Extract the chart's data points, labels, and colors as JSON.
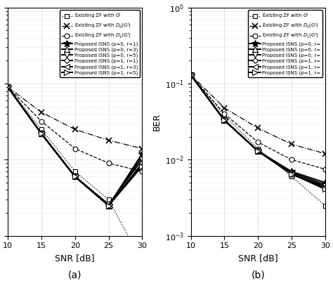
{
  "snr_a": [
    10,
    15,
    20,
    25,
    30
  ],
  "snr_b": [
    10,
    15,
    20,
    25,
    30
  ],
  "subplot_a": {
    "G": [
      0.09,
      0.025,
      0.007,
      0.003,
      0.00045
    ],
    "D0G": [
      0.09,
      0.042,
      0.025,
      0.018,
      0.014
    ],
    "D1G": [
      0.09,
      0.032,
      0.014,
      0.009,
      0.007
    ],
    "p0r1": [
      0.09,
      0.022,
      0.006,
      0.0025,
      0.012
    ],
    "p0r3": [
      0.09,
      0.022,
      0.006,
      0.0025,
      0.011
    ],
    "p0r5": [
      0.09,
      0.022,
      0.006,
      0.0026,
      0.01
    ],
    "p1r1": [
      0.09,
      0.022,
      0.006,
      0.0025,
      0.009
    ],
    "p1r3": [
      0.09,
      0.022,
      0.006,
      0.0025,
      0.0085
    ],
    "p1r5": [
      0.09,
      0.022,
      0.006,
      0.0025,
      0.0082
    ]
  },
  "subplot_b": {
    "G": [
      0.13,
      0.038,
      0.014,
      0.006,
      0.0025
    ],
    "D0G": [
      0.13,
      0.048,
      0.026,
      0.016,
      0.012
    ],
    "D1G": [
      0.13,
      0.04,
      0.017,
      0.01,
      0.0075
    ],
    "p0r1": [
      0.13,
      0.033,
      0.013,
      0.007,
      0.005
    ],
    "p0r3": [
      0.13,
      0.033,
      0.013,
      0.0068,
      0.0047
    ],
    "p0r5": [
      0.13,
      0.033,
      0.013,
      0.0065,
      0.0045
    ],
    "p1r1": [
      0.13,
      0.033,
      0.013,
      0.0065,
      0.0043
    ],
    "p1r3": [
      0.13,
      0.033,
      0.013,
      0.0065,
      0.0042
    ],
    "p1r5": [
      0.13,
      0.033,
      0.013,
      0.0065,
      0.0041
    ]
  },
  "ylim": [
    0.001,
    1.0
  ],
  "xlim": [
    10,
    30
  ],
  "xticks": [
    10,
    15,
    20,
    25,
    30
  ],
  "legend_labels_a": [
    "Existing ZF with $G^i$",
    "Existing ZF with $D_0(G^i)$",
    "Existing ZF with $D_1(G^i)$",
    "Proposed ISNS (p=0, r=1)",
    "Proposed ISNS (p=0, r=3)",
    "Proposed ISNS (p=0, r=5)",
    "Proposed ISNS (p=1, r=1)",
    "Proposed ISNS (p=1, r=3)",
    "Proposed ISNS (p=1, r=5)"
  ],
  "legend_labels_b": [
    "Existing ZF with $G^i$",
    "Existing ZF with $D_0(G^i)$",
    "Existing ZF with $D_1(G^i)$",
    "Proposed ISNS (p=0, r=",
    "Proposed ISNS (p=0, r=",
    "Proposed ISNS (p=0, r=",
    "Proposed ISNS (p=1, r=",
    "Proposed ISNS (p=1, r=",
    "Proposed ISNS (p=1, r="
  ],
  "xlabel": "SNR [dB]",
  "ylabel": "BER",
  "label_a": "(a)",
  "label_b": "(b)"
}
